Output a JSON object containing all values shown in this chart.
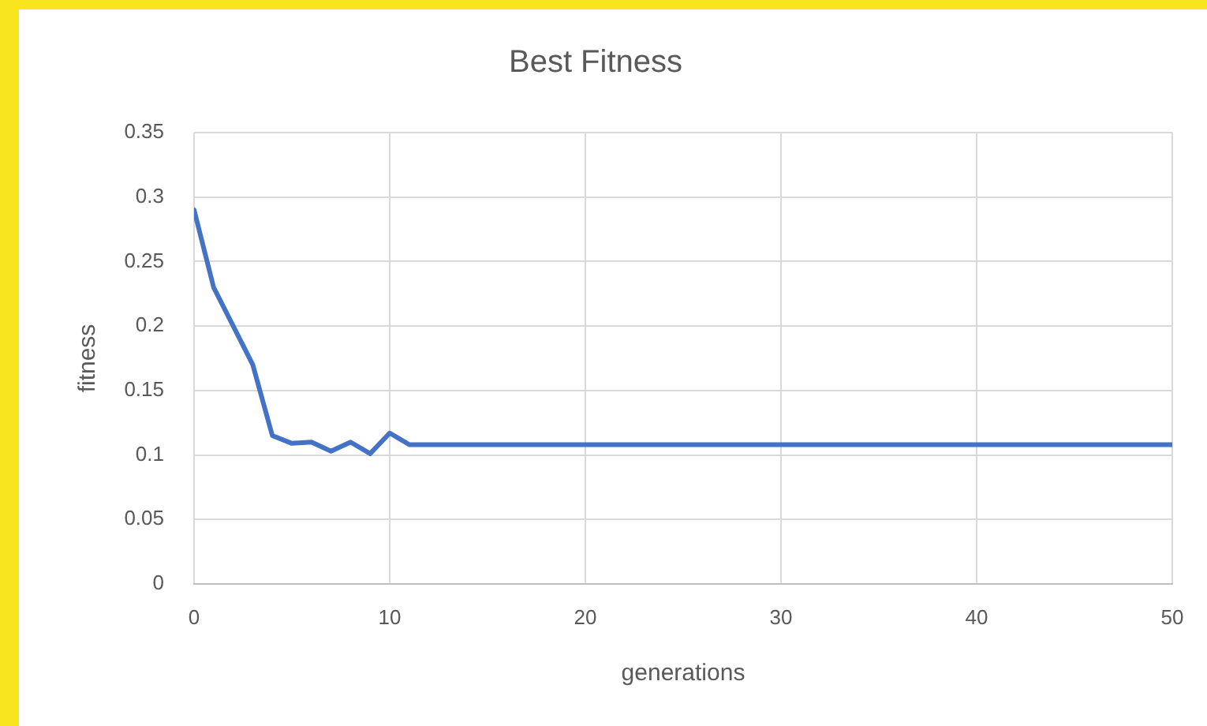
{
  "chart_data": {
    "type": "line",
    "title": "Best Fitness",
    "xlabel": "generations",
    "ylabel": "fitness",
    "x": [
      0,
      1,
      2,
      3,
      4,
      5,
      6,
      7,
      8,
      9,
      10,
      11,
      12,
      13,
      14,
      15,
      16,
      17,
      18,
      19,
      20,
      21,
      22,
      23,
      24,
      25,
      26,
      27,
      28,
      29,
      30,
      31,
      32,
      33,
      34,
      35,
      36,
      37,
      38,
      39,
      40,
      41,
      42,
      43,
      44,
      45,
      46,
      47,
      48,
      49,
      50
    ],
    "series": [
      {
        "color": "#4472c4",
        "values": [
          0.29,
          0.23,
          0.2,
          0.17,
          0.115,
          0.109,
          0.11,
          0.103,
          0.11,
          0.101,
          0.117,
          0.108,
          0.108,
          0.108,
          0.108,
          0.108,
          0.108,
          0.108,
          0.108,
          0.108,
          0.108,
          0.108,
          0.108,
          0.108,
          0.108,
          0.108,
          0.108,
          0.108,
          0.108,
          0.108,
          0.108,
          0.108,
          0.108,
          0.108,
          0.108,
          0.108,
          0.108,
          0.108,
          0.108,
          0.108,
          0.108,
          0.108,
          0.108,
          0.108,
          0.108,
          0.108,
          0.108,
          0.108,
          0.108,
          0.108,
          0.108
        ]
      }
    ],
    "xlim": [
      0,
      50
    ],
    "xticks": [
      0,
      10,
      20,
      30,
      40,
      50
    ],
    "ylim": [
      0,
      0.35
    ],
    "yticks": [
      0,
      0.05,
      0.1,
      0.15,
      0.2,
      0.25,
      0.3,
      0.35
    ],
    "grid": true,
    "marker": "none",
    "line_style": "solid"
  }
}
